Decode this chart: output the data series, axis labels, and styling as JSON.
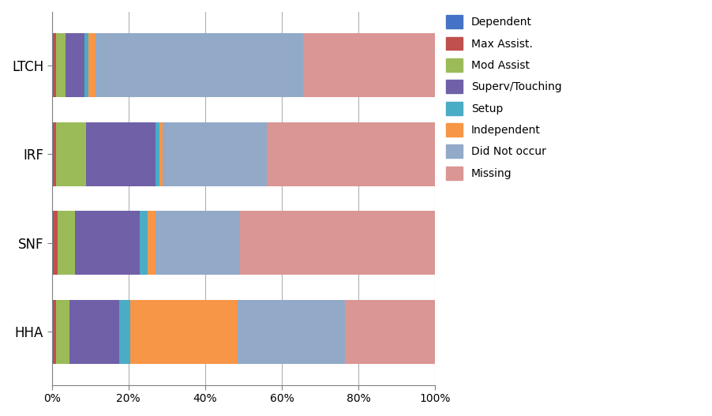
{
  "providers": [
    "LTCH",
    "IRF",
    "SNF",
    "HHA"
  ],
  "categories": [
    "Dependent",
    "Max Assist.",
    "Mod Assist",
    "Superv/Touching",
    "Setup",
    "Independent",
    "Did Not occur",
    "Missing"
  ],
  "colors": [
    "#4472c4",
    "#c0504d",
    "#9bbb59",
    "#7060a8",
    "#4bacc6",
    "#f79646",
    "#92a9c8",
    "#d99694"
  ],
  "data": {
    "LTCH": [
      0.5,
      0.5,
      2.5,
      5.0,
      1.0,
      2.0,
      54.0,
      34.5
    ],
    "IRF": [
      0.5,
      0.5,
      8.0,
      18.0,
      1.0,
      1.0,
      27.0,
      44.0
    ],
    "SNF": [
      0.5,
      1.0,
      4.5,
      17.0,
      2.0,
      2.0,
      22.0,
      51.0
    ],
    "HHA": [
      0.5,
      0.5,
      3.5,
      13.0,
      3.0,
      28.0,
      28.0,
      23.5
    ]
  },
  "xlim": [
    0,
    100
  ],
  "xtick_labels": [
    "0%",
    "20%",
    "40%",
    "60%",
    "80%",
    "100%"
  ],
  "xtick_values": [
    0,
    20,
    40,
    60,
    80,
    100
  ],
  "background_color": "#ffffff",
  "legend_fontsize": 10,
  "bar_height": 0.72,
  "figsize": [
    9.02,
    5.27
  ],
  "dpi": 100
}
